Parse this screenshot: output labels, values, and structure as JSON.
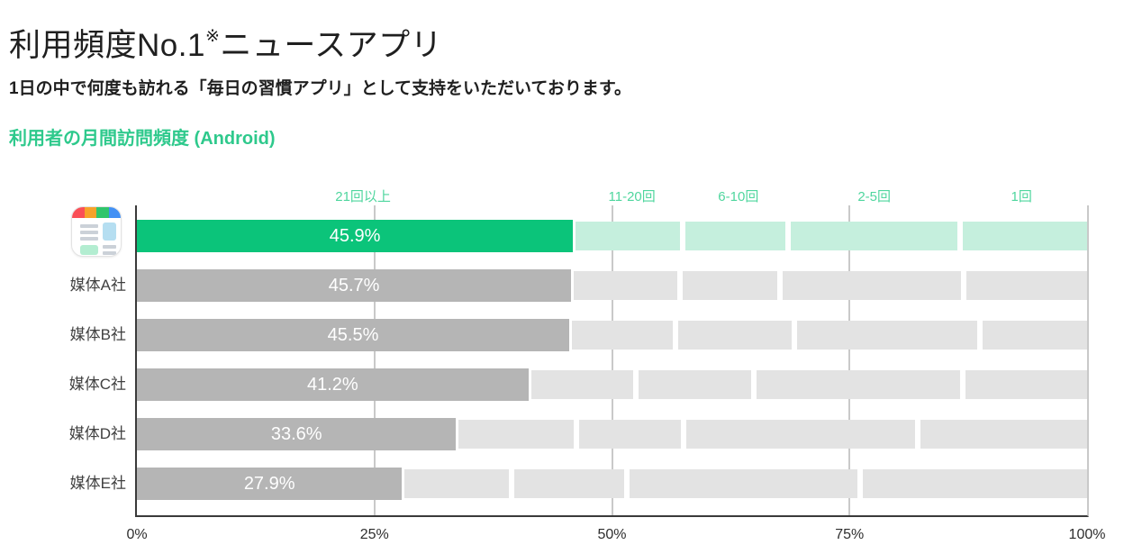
{
  "header": {
    "title_main": "利用頻度No.1",
    "title_note_mark": "※",
    "title_tail": "ニュースアプリ",
    "subtitle": "1日の中で何度も訪れる「毎日の習慣アプリ」として支持をいただいております。",
    "section_label": "利用者の月間訪問頻度 (Android)"
  },
  "colors": {
    "green_bar": "#0bc47a",
    "mint": "#c5efdd",
    "gray_dark": "#b5b5b5",
    "gray_light": "#e3e3e3",
    "grid": "#c9c9c9",
    "axis": "#3a3a3a",
    "cat_green": "#4fd69e",
    "section_green": "#2ec98c",
    "title_color": "#1f1f1f",
    "label_color": "#404040",
    "icon_gray": "#cbd1d8",
    "icon_blue": "#b5def1",
    "icon_mint": "#b3edd1",
    "app_icon_stripe": [
      "#fa4f57",
      "#f7a22a",
      "#31c56b",
      "#4290f4"
    ]
  },
  "chart_data": {
    "type": "bar",
    "orientation": "horizontal",
    "stacked": true,
    "percent_total": 100,
    "title": "利用者の月間訪問頻度 (Android)",
    "stack_categories": [
      "21回以上",
      "11-20回",
      "6-10回",
      "2-5回",
      "1回"
    ],
    "rows": [
      {
        "key": "news-app",
        "label": "",
        "icon": "news-app-icon",
        "highlighted": true,
        "values_pct": [
          45.9,
          11.5,
          11.1,
          18.1,
          13.4
        ],
        "data_label": "45.9%"
      },
      {
        "key": "media-a",
        "label": "媒体A社",
        "highlighted": false,
        "values_pct": [
          45.7,
          11.5,
          10.5,
          19.3,
          13.0
        ],
        "data_label": "45.7%"
      },
      {
        "key": "media-b",
        "label": "媒体B社",
        "highlighted": false,
        "values_pct": [
          45.5,
          11.2,
          12.5,
          19.5,
          11.3
        ],
        "data_label": "45.5%"
      },
      {
        "key": "media-c",
        "label": "媒体C社",
        "highlighted": false,
        "values_pct": [
          41.2,
          11.3,
          12.4,
          22.0,
          13.1
        ],
        "data_label": "41.2%"
      },
      {
        "key": "media-d",
        "label": "媒体D社",
        "highlighted": false,
        "values_pct": [
          33.6,
          12.7,
          11.2,
          24.7,
          17.8
        ],
        "data_label": "33.6%"
      },
      {
        "key": "media-e",
        "label": "媒体E社",
        "highlighted": false,
        "values_pct": [
          27.9,
          11.5,
          12.2,
          24.5,
          23.9
        ],
        "data_label": "27.9%"
      }
    ],
    "x_ticks": [
      "0%",
      "25%",
      "50%",
      "75%",
      "100%"
    ],
    "xlim": [
      0,
      100
    ],
    "grid": true,
    "legend_position": "above-first-row"
  }
}
